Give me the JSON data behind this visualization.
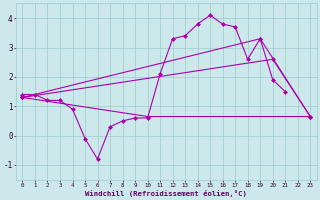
{
  "xlabel": "Windchill (Refroidissement éolien,°C)",
  "bg_color": "#cce8ea",
  "line_color": "#aa00aa",
  "grid_color": "#99cccc",
  "ylim": [
    -1.5,
    4.5
  ],
  "xlim": [
    -0.5,
    23.5
  ],
  "yticks": [
    -1,
    0,
    1,
    2,
    3,
    4
  ],
  "xticks": [
    0,
    1,
    2,
    3,
    4,
    5,
    6,
    7,
    8,
    9,
    10,
    11,
    12,
    13,
    14,
    15,
    16,
    17,
    18,
    19,
    20,
    21,
    22,
    23
  ],
  "series1_x": [
    0,
    1,
    2,
    3,
    4,
    5,
    6,
    7,
    8,
    9,
    10,
    11,
    12,
    13,
    14,
    15,
    16,
    17,
    18,
    19,
    20,
    21
  ],
  "series1_y": [
    1.4,
    1.4,
    1.2,
    1.2,
    0.9,
    -0.1,
    -0.8,
    0.3,
    0.5,
    0.6,
    0.6,
    2.1,
    3.3,
    3.4,
    3.8,
    4.1,
    3.8,
    3.7,
    2.6,
    3.3,
    1.9,
    1.5
  ],
  "series2_x": [
    0,
    10,
    23
  ],
  "series2_y": [
    1.3,
    0.65,
    0.65
  ],
  "series3_x": [
    0,
    19,
    23
  ],
  "series3_y": [
    1.3,
    3.3,
    0.65
  ],
  "series4_x": [
    0,
    20,
    23
  ],
  "series4_y": [
    1.3,
    2.6,
    0.65
  ]
}
